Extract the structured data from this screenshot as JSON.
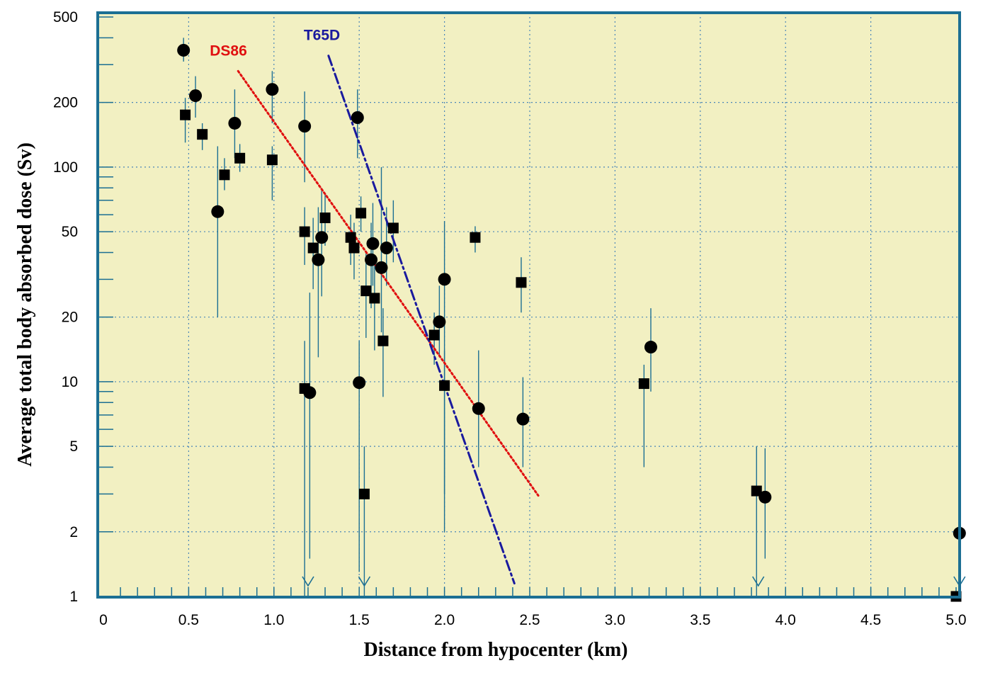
{
  "chart_data": {
    "type": "scatter",
    "xlabel": "Distance from hypocenter (km)",
    "ylabel": "Average total body absorbed dose (Sv)",
    "xlim": [
      0,
      5.0
    ],
    "ylim": [
      1,
      500
    ],
    "yscale": "log",
    "grid": true,
    "x_ticks": [
      {
        "value": 0,
        "label": "0"
      },
      {
        "value": 0.5,
        "label": "0.5"
      },
      {
        "value": 1.0,
        "label": "1.0"
      },
      {
        "value": 1.5,
        "label": "1.5"
      },
      {
        "value": 2.0,
        "label": "2.0"
      },
      {
        "value": 2.5,
        "label": "2.5"
      },
      {
        "value": 3.0,
        "label": "3.0"
      },
      {
        "value": 3.5,
        "label": "3.5"
      },
      {
        "value": 4.0,
        "label": "4.0"
      },
      {
        "value": 4.5,
        "label": "4.5"
      },
      {
        "value": 5.0,
        "label": "5.0"
      }
    ],
    "y_ticks": [
      {
        "value": 1,
        "label": "1"
      },
      {
        "value": 2,
        "label": "2"
      },
      {
        "value": 5,
        "label": "5"
      },
      {
        "value": 10,
        "label": "10"
      },
      {
        "value": 20,
        "label": "20"
      },
      {
        "value": 50,
        "label": "50"
      },
      {
        "value": 100,
        "label": "100"
      },
      {
        "value": 200,
        "label": "200"
      },
      {
        "value": 500,
        "label": "500"
      }
    ],
    "series": [
      {
        "marker": "circle",
        "color": "#000000",
        "points": [
          {
            "x": 0.47,
            "y": 350,
            "lo": 310,
            "hi": 400
          },
          {
            "x": 0.54,
            "y": 215,
            "lo": 170,
            "hi": 265
          },
          {
            "x": 0.67,
            "y": 62,
            "lo": 20,
            "hi": 125
          },
          {
            "x": 0.77,
            "y": 160,
            "lo": 110,
            "hi": 230
          },
          {
            "x": 0.99,
            "y": 230,
            "lo": 160,
            "hi": 280
          },
          {
            "x": 1.18,
            "y": 155,
            "lo": 85,
            "hi": 225
          },
          {
            "x": 1.21,
            "y": 8.9,
            "lo": 1.5,
            "hi": 26
          },
          {
            "x": 1.26,
            "y": 37,
            "lo": 13,
            "hi": 65
          },
          {
            "x": 1.28,
            "y": 47,
            "lo": 25,
            "hi": 80
          },
          {
            "x": 1.49,
            "y": 170,
            "lo": 110,
            "hi": 230
          },
          {
            "x": 1.5,
            "y": 9.9,
            "lo": 1.3,
            "hi": 15.5
          },
          {
            "x": 1.57,
            "y": 37,
            "lo": 22,
            "hi": 55
          },
          {
            "x": 1.58,
            "y": 44,
            "lo": 28,
            "hi": 68
          },
          {
            "x": 1.63,
            "y": 34,
            "lo": 17,
            "hi": 100
          },
          {
            "x": 1.66,
            "y": 42,
            "lo": 28,
            "hi": 65
          },
          {
            "x": 1.97,
            "y": 19,
            "lo": 13,
            "hi": 28
          },
          {
            "x": 2.0,
            "y": 30,
            "lo": 2,
            "hi": 56
          },
          {
            "x": 2.2,
            "y": 7.5,
            "lo": 4,
            "hi": 14
          },
          {
            "x": 2.46,
            "y": 6.7,
            "lo": 4,
            "hi": 10.5
          },
          {
            "x": 3.21,
            "y": 14.5,
            "lo": 9,
            "hi": 22
          },
          {
            "x": 3.88,
            "y": 2.9,
            "lo": 1.5,
            "hi": 4.9
          },
          {
            "x": 5.02,
            "y": 1.97,
            "lo": 1,
            "hi": 4.8
          }
        ]
      },
      {
        "marker": "square",
        "color": "#000000",
        "points": [
          {
            "x": 0.48,
            "y": 175,
            "lo": 130,
            "hi": 210
          },
          {
            "x": 0.58,
            "y": 142,
            "lo": 120,
            "hi": 160
          },
          {
            "x": 0.71,
            "y": 92,
            "lo": 78,
            "hi": 110
          },
          {
            "x": 0.8,
            "y": 110,
            "lo": 95,
            "hi": 128
          },
          {
            "x": 0.99,
            "y": 108,
            "lo": 70,
            "hi": 125
          },
          {
            "x": 1.18,
            "y": 50,
            "lo": 35,
            "hi": 65
          },
          {
            "x": 1.18,
            "y": 9.3,
            "lo": 1,
            "hi": 15.5
          },
          {
            "x": 1.23,
            "y": 42,
            "lo": 27,
            "hi": 58
          },
          {
            "x": 1.3,
            "y": 58,
            "lo": 43,
            "hi": 75
          },
          {
            "x": 1.45,
            "y": 47,
            "lo": 35,
            "hi": 60
          },
          {
            "x": 1.47,
            "y": 42,
            "lo": 30,
            "hi": 55
          },
          {
            "x": 1.51,
            "y": 61,
            "lo": 50,
            "hi": 73
          },
          {
            "x": 1.53,
            "y": 3.0,
            "lo": 1,
            "hi": 5
          },
          {
            "x": 1.54,
            "y": 26.5,
            "lo": 16,
            "hi": 40
          },
          {
            "x": 1.59,
            "y": 24.5,
            "lo": 14,
            "hi": 38
          },
          {
            "x": 1.64,
            "y": 15.5,
            "lo": 8.5,
            "hi": 22
          },
          {
            "x": 1.7,
            "y": 52,
            "lo": 36,
            "hi": 70
          },
          {
            "x": 1.94,
            "y": 16.5,
            "lo": 12,
            "hi": 21
          },
          {
            "x": 2.0,
            "y": 9.6,
            "lo": 3,
            "hi": 14
          },
          {
            "x": 2.18,
            "y": 47,
            "lo": 40,
            "hi": 53
          },
          {
            "x": 2.45,
            "y": 29,
            "lo": 21,
            "hi": 38
          },
          {
            "x": 3.17,
            "y": 9.8,
            "lo": 4,
            "hi": 12
          },
          {
            "x": 3.83,
            "y": 3.1,
            "lo": 1,
            "hi": 5
          },
          {
            "x": 5.0,
            "y": 1,
            "lo": 1,
            "hi": 1
          }
        ]
      }
    ],
    "lines": [
      {
        "name": "DS86",
        "color": "#e01010",
        "style": "dotted",
        "points": [
          {
            "x": 0.79,
            "y": 280
          },
          {
            "x": 2.55,
            "y": 2.95
          }
        ]
      },
      {
        "name": "T65D",
        "color": "#1a1a9e",
        "style": "dashdot",
        "points": [
          {
            "x": 1.32,
            "y": 330
          },
          {
            "x": 2.41,
            "y": 1.15
          }
        ]
      }
    ],
    "downward_arrows": [
      {
        "x": 1.2
      },
      {
        "x": 1.53
      },
      {
        "x": 3.84
      },
      {
        "x": 5.02
      }
    ],
    "colors": {
      "plot_background": "#f2f0c2",
      "frame": "#1c6f93",
      "grid": "#4a86b8",
      "error_bar": "#1c6f93",
      "marker": "#000000"
    }
  }
}
